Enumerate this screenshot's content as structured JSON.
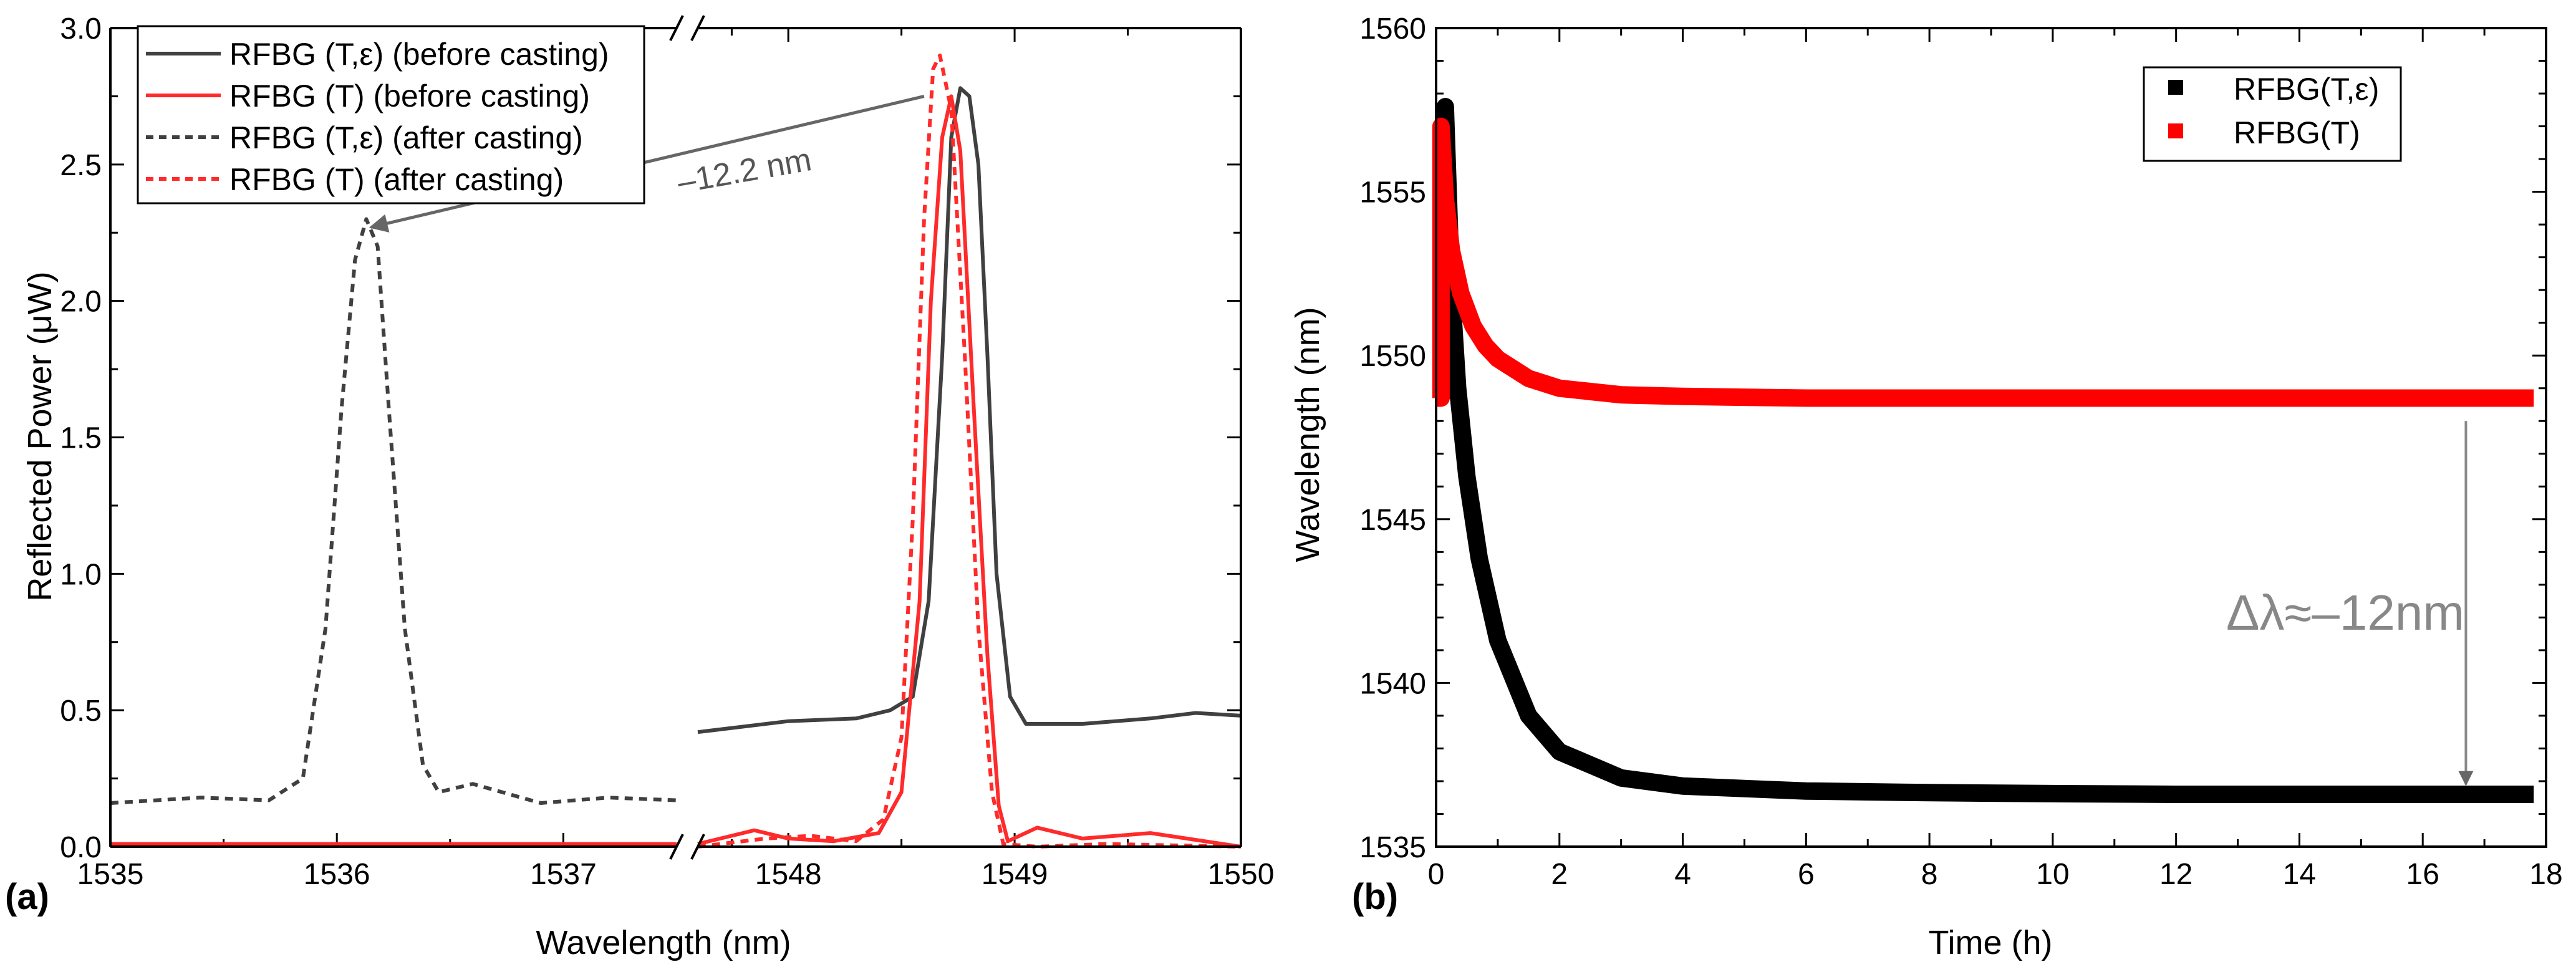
{
  "chart_data": [
    {
      "panel_label": "(a)",
      "type": "line",
      "xlabel": "Wavelength (nm)",
      "ylabel": "Reflected Power (μW)",
      "x_break": {
        "left_range": [
          1535,
          1537.5
        ],
        "right_range": [
          1547.6,
          1550
        ]
      },
      "ylim": [
        0,
        3.0
      ],
      "xticks_left": [
        "1535",
        "1536",
        "1537"
      ],
      "xticks_right": [
        "1548",
        "1549",
        "1550"
      ],
      "yticks": [
        "0.0",
        "0.5",
        "1.0",
        "1.5",
        "2.0",
        "2.5",
        "3.0"
      ],
      "legend": {
        "position": "top-left",
        "entries": [
          {
            "label": "RFBG (T,ε) (before casting)",
            "color": "#404040",
            "style": "solid"
          },
          {
            "label": "RFBG (T) (before casting)",
            "color": "#ff2a2a",
            "style": "solid"
          },
          {
            "label": "RFBG (T,ε) (after casting)",
            "color": "#404040",
            "style": "dashed"
          },
          {
            "label": "RFBG (T) (after casting)",
            "color": "#ff2a2a",
            "style": "dashed"
          }
        ]
      },
      "series": [
        {
          "name": "RFBG (T,ε) (before casting)",
          "color": "#404040",
          "style": "solid",
          "x": [
            1547.6,
            1548.0,
            1548.3,
            1548.45,
            1548.55,
            1548.62,
            1548.68,
            1548.72,
            1548.76,
            1548.8,
            1548.84,
            1548.88,
            1548.92,
            1548.98,
            1549.05,
            1549.3,
            1549.6,
            1549.8,
            1550.0
          ],
          "y": [
            0.42,
            0.46,
            0.47,
            0.5,
            0.55,
            0.9,
            1.8,
            2.6,
            2.78,
            2.75,
            2.5,
            1.8,
            1.0,
            0.55,
            0.45,
            0.45,
            0.47,
            0.49,
            0.48
          ]
        },
        {
          "name": "RFBG (T) (before casting)",
          "color": "#ff2a2a",
          "style": "solid",
          "x_left": [
            1535.0,
            1537.5
          ],
          "y_left": [
            0.01,
            0.01
          ],
          "x": [
            1547.6,
            1547.85,
            1548.0,
            1548.2,
            1548.4,
            1548.5,
            1548.58,
            1548.63,
            1548.68,
            1548.72,
            1548.76,
            1548.82,
            1548.88,
            1548.93,
            1548.97,
            1549.1,
            1549.3,
            1549.6,
            1550.0
          ],
          "y": [
            0.01,
            0.06,
            0.03,
            0.02,
            0.05,
            0.2,
            0.9,
            2.0,
            2.6,
            2.75,
            2.55,
            1.6,
            0.7,
            0.15,
            0.02,
            0.07,
            0.03,
            0.05,
            0.0
          ]
        },
        {
          "name": "RFBG (T,ε) (after casting)",
          "color": "#404040",
          "style": "dashed",
          "x": [
            1535.0,
            1535.4,
            1535.7,
            1535.85,
            1535.95,
            1536.02,
            1536.08,
            1536.13,
            1536.18,
            1536.23,
            1536.3,
            1536.38,
            1536.45,
            1536.6,
            1536.9,
            1537.2,
            1537.5
          ],
          "y": [
            0.16,
            0.18,
            0.17,
            0.25,
            0.8,
            1.6,
            2.15,
            2.3,
            2.2,
            1.6,
            0.8,
            0.3,
            0.2,
            0.23,
            0.16,
            0.18,
            0.17
          ]
        },
        {
          "name": "RFBG (T) (after casting)",
          "color": "#ff2a2a",
          "style": "dashed",
          "x": [
            1547.6,
            1547.9,
            1548.1,
            1548.3,
            1548.42,
            1548.5,
            1548.55,
            1548.6,
            1548.64,
            1548.67,
            1548.72,
            1548.78,
            1548.84,
            1548.9,
            1548.95,
            1549.1,
            1549.4,
            1550.0
          ],
          "y": [
            0.0,
            0.03,
            0.04,
            0.02,
            0.1,
            0.4,
            1.2,
            2.3,
            2.85,
            2.9,
            2.7,
            1.8,
            0.8,
            0.2,
            0.01,
            0.0,
            0.01,
            0.0
          ]
        }
      ],
      "annotation": {
        "text": "–12.2 nm",
        "arrow_from": [
          1548.6,
          2.75
        ],
        "arrow_to": [
          1536.15,
          2.27
        ]
      }
    },
    {
      "panel_label": "(b)",
      "type": "scatter",
      "xlabel": "Time (h)",
      "ylabel": "Wavelength (nm)",
      "xlim": [
        0,
        18
      ],
      "ylim": [
        1535,
        1560
      ],
      "xticks": [
        "0",
        "2",
        "4",
        "6",
        "8",
        "10",
        "12",
        "14",
        "16",
        "18"
      ],
      "yticks": [
        "1535",
        "1540",
        "1545",
        "1550",
        "1555",
        "1560"
      ],
      "legend": {
        "position": "top-right",
        "entries": [
          {
            "label": "RFBG(T,ε)",
            "color": "#000000"
          },
          {
            "label": "RFBG(T)",
            "color": "#ff0000"
          }
        ]
      },
      "series": [
        {
          "name": "RFBG(T,ε)",
          "color": "#000000",
          "x": [
            0.0,
            0.15,
            0.15,
            0.25,
            0.35,
            0.5,
            0.7,
            1.0,
            1.5,
            2.0,
            3.0,
            4.0,
            6.0,
            8.0,
            10.0,
            12.0,
            14.0,
            16.0,
            17.8
          ],
          "y": [
            1548.9,
            1548.9,
            1557.6,
            1552.0,
            1549.0,
            1546.3,
            1543.8,
            1541.3,
            1539.0,
            1537.9,
            1537.1,
            1536.85,
            1536.7,
            1536.65,
            1536.62,
            1536.6,
            1536.6,
            1536.6,
            1536.6
          ]
        },
        {
          "name": "RFBG(T)",
          "color": "#ff0000",
          "x": [
            0.0,
            0.08,
            0.08,
            0.15,
            0.25,
            0.4,
            0.6,
            0.8,
            1.0,
            1.5,
            2.0,
            3.0,
            4.0,
            6.0,
            8.0,
            10.0,
            12.0,
            14.0,
            16.0,
            17.8
          ],
          "y": [
            1548.7,
            1548.7,
            1557.0,
            1554.8,
            1553.2,
            1551.9,
            1550.9,
            1550.3,
            1549.9,
            1549.3,
            1549.0,
            1548.8,
            1548.75,
            1548.7,
            1548.7,
            1548.7,
            1548.7,
            1548.7,
            1548.7,
            1548.7
          ]
        }
      ],
      "annotation": {
        "text": "Δλ≈–12nm",
        "arrow_x": 16.7,
        "arrow_from_y": 1548.0,
        "arrow_to_y": 1536.9
      }
    }
  ]
}
